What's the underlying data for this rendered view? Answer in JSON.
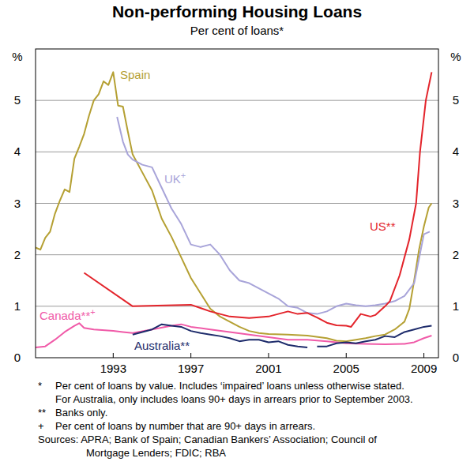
{
  "chart_data": {
    "type": "line",
    "title": "Non-performing Housing Loans",
    "subtitle": "Per cent of loans*",
    "y_label": "%",
    "xlim": [
      1989,
      2009.75
    ],
    "xticks": [
      1993,
      1997,
      2001,
      2005,
      2009
    ],
    "ylim": [
      0,
      6
    ],
    "yticks": [
      0,
      1,
      2,
      3,
      4,
      5
    ],
    "grid": true,
    "series": [
      {
        "name": "Spain",
        "color": "#b5a033",
        "x": [
          1989,
          1989.25,
          1989.5,
          1989.75,
          1990,
          1990.25,
          1990.5,
          1990.75,
          1991,
          1991.25,
          1991.5,
          1991.75,
          1992,
          1992.25,
          1992.5,
          1992.75,
          1993,
          1993.25,
          1993.5,
          1993.75,
          1994,
          1994.5,
          1995,
          1995.5,
          1996,
          1996.5,
          1997,
          1997.5,
          1998,
          1998.5,
          1999,
          1999.5,
          2000,
          2000.5,
          2001,
          2002,
          2003,
          2004,
          2004.5,
          2005,
          2005.5,
          2006,
          2006.5,
          2007,
          2007.5,
          2008,
          2008.25,
          2008.5,
          2008.75,
          2009,
          2009.25,
          2009.4
        ],
        "values": [
          2.14,
          2.1,
          2.33,
          2.45,
          2.8,
          3.05,
          3.27,
          3.22,
          3.87,
          4.1,
          4.35,
          4.7,
          5.0,
          5.12,
          5.37,
          5.3,
          5.55,
          4.9,
          4.88,
          4.4,
          3.95,
          3.6,
          3.25,
          2.7,
          2.35,
          1.95,
          1.55,
          1.25,
          0.95,
          0.8,
          0.7,
          0.6,
          0.52,
          0.48,
          0.46,
          0.45,
          0.43,
          0.38,
          0.33,
          0.32,
          0.35,
          0.38,
          0.42,
          0.45,
          0.55,
          0.7,
          0.95,
          1.5,
          2.1,
          2.55,
          2.92,
          3.0
        ]
      },
      {
        "name": "UK+",
        "color": "#a8a4d9",
        "x": [
          1993.2,
          1993.5,
          1993.75,
          1994,
          1994.5,
          1995,
          1995.5,
          1996,
          1996.5,
          1997,
          1997.5,
          1998,
          1998.5,
          1999,
          1999.5,
          2000,
          2000.5,
          2001,
          2001.5,
          2002,
          2002.5,
          2003,
          2003.5,
          2004,
          2004.5,
          2005,
          2005.5,
          2006,
          2006.5,
          2007,
          2007.5,
          2008,
          2008.5,
          2009,
          2009.3
        ],
        "values": [
          4.68,
          4.2,
          3.95,
          3.85,
          3.75,
          3.7,
          3.3,
          2.9,
          2.6,
          2.2,
          2.15,
          2.2,
          2.0,
          1.7,
          1.5,
          1.45,
          1.35,
          1.25,
          1.15,
          1.0,
          0.97,
          0.87,
          0.85,
          0.9,
          1.0,
          1.05,
          1.02,
          1.0,
          1.02,
          1.05,
          1.1,
          1.2,
          1.45,
          2.4,
          2.45
        ]
      },
      {
        "name": "US**",
        "color": "#e3242b",
        "x": [
          1991.5,
          1994,
          1997,
          1998,
          1999,
          2000,
          2001,
          2001.5,
          2002,
          2002.5,
          2003,
          2003.5,
          2004,
          2004.5,
          2005,
          2005.25,
          2005.75,
          2006.25,
          2006.5,
          2007,
          2007.25,
          2007.75,
          2008.25,
          2008.6,
          2008.8,
          2009.1,
          2009.4
        ],
        "values": [
          1.65,
          1.0,
          1.03,
          0.9,
          0.8,
          0.77,
          0.8,
          0.85,
          0.9,
          0.85,
          0.87,
          0.78,
          0.68,
          0.63,
          0.62,
          0.6,
          0.85,
          0.8,
          0.83,
          1.0,
          1.1,
          1.6,
          2.3,
          3.0,
          4.0,
          5.0,
          5.55
        ]
      },
      {
        "name": "Canada**+",
        "color": "#f05aa8",
        "x": [
          1989,
          1989.5,
          1990,
          1990.5,
          1991,
          1991.25,
          1991.5,
          1992,
          1993,
          1993.5,
          1994,
          1995,
          1996,
          1996.5,
          1997,
          1998,
          1999,
          2000,
          2001,
          2002,
          2003,
          2004,
          2005,
          2006,
          2007,
          2008,
          2008.5,
          2009,
          2009.4
        ],
        "values": [
          0.2,
          0.22,
          0.35,
          0.5,
          0.62,
          0.67,
          0.58,
          0.55,
          0.52,
          0.5,
          0.48,
          0.55,
          0.62,
          0.65,
          0.6,
          0.55,
          0.5,
          0.45,
          0.4,
          0.35,
          0.35,
          0.32,
          0.28,
          0.27,
          0.26,
          0.27,
          0.3,
          0.38,
          0.43
        ]
      },
      {
        "name": "Australia**",
        "color": "#1d2b6b",
        "x": [
          1994,
          1994.5,
          1995,
          1995.5,
          1996,
          1996.5,
          1997,
          1997.5,
          1998,
          1998.5,
          1999,
          1999.5,
          2000,
          2000.5,
          2001,
          2001.5,
          2002,
          2002.5,
          2003,
          2003.3,
          2003.5,
          2004,
          2004.5,
          2005,
          2005.5,
          2006,
          2006.5,
          2007,
          2007.5,
          2008,
          2008.5,
          2009,
          2009.4
        ],
        "values": [
          0.45,
          0.5,
          0.55,
          0.65,
          0.62,
          0.6,
          0.52,
          0.48,
          0.45,
          0.42,
          0.38,
          0.32,
          0.35,
          0.35,
          0.3,
          0.32,
          0.25,
          0.22,
          0.2,
          null,
          0.22,
          0.22,
          0.28,
          0.3,
          0.28,
          0.32,
          0.35,
          0.42,
          0.4,
          0.5,
          0.55,
          0.6,
          0.62
        ]
      }
    ],
    "notes": [
      {
        "mark": "*",
        "lines": [
          "Per cent of loans by value. Includes ‘impaired’ loans unless otherwise stated.",
          "For Australia, only includes loans 90+ days in arrears prior to September 2003."
        ]
      },
      {
        "mark": "**",
        "lines": [
          "Banks only."
        ]
      },
      {
        "mark": "+",
        "lines": [
          "Per cent of loans by number that are 90+ days in arrears."
        ]
      }
    ],
    "sources": [
      "Sources: APRA; Bank of Spain; Canadian Bankers’ Association; Council of",
      "Mortgage Lenders; FDIC; RBA"
    ]
  }
}
